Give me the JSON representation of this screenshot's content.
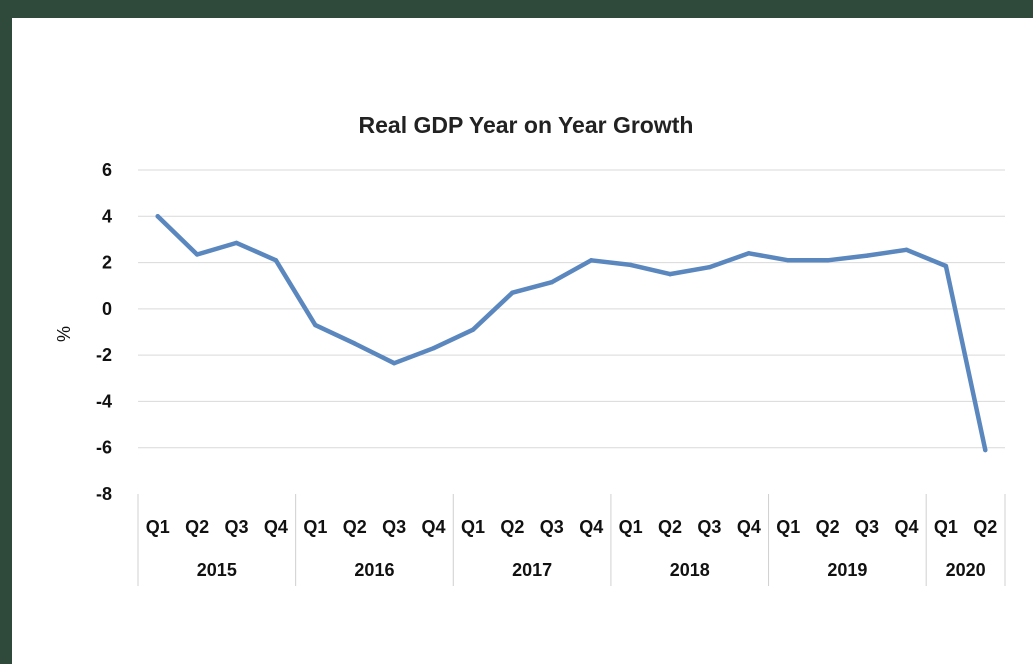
{
  "chart_data": {
    "type": "line",
    "title": "Real GDP Year on Year Growth",
    "ylabel": "%",
    "xlabel": "",
    "ylim": [
      -8,
      6
    ],
    "yticks": [
      6,
      4,
      2,
      0,
      -2,
      -4,
      -6,
      -8
    ],
    "grid": true,
    "legend": "none",
    "color": "#5b87bf",
    "categories": [
      "Q1",
      "Q2",
      "Q3",
      "Q4",
      "Q1",
      "Q2",
      "Q3",
      "Q4",
      "Q1",
      "Q2",
      "Q3",
      "Q4",
      "Q1",
      "Q2",
      "Q3",
      "Q4",
      "Q1",
      "Q2",
      "Q3",
      "Q4",
      "Q1",
      "Q2"
    ],
    "groups": [
      {
        "label": "2015",
        "count": 4
      },
      {
        "label": "2016",
        "count": 4
      },
      {
        "label": "2017",
        "count": 4
      },
      {
        "label": "2018",
        "count": 4
      },
      {
        "label": "2019",
        "count": 4
      },
      {
        "label": "2020",
        "count": 2
      }
    ],
    "series": [
      {
        "values": [
          4.0,
          2.35,
          2.85,
          2.1,
          -0.7,
          -1.5,
          -2.35,
          -1.7,
          -0.9,
          0.7,
          1.15,
          2.1,
          1.9,
          1.5,
          1.8,
          2.4,
          2.1,
          2.1,
          2.3,
          2.55,
          1.85,
          -6.1
        ]
      }
    ]
  }
}
